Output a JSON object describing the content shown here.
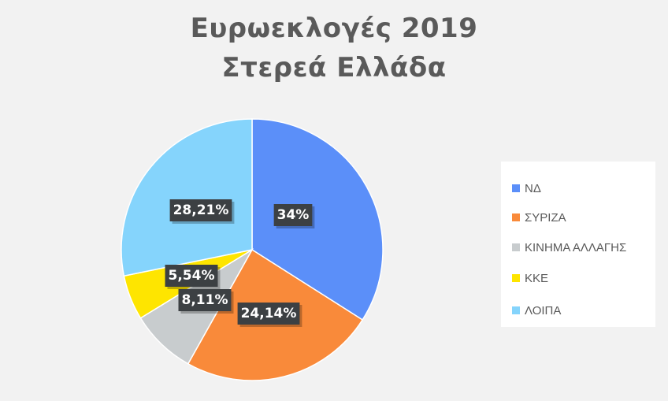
{
  "chart_data": {
    "type": "pie",
    "title": [
      "Ευρωεκλογές 2019",
      "Στερεά Ελλάδα"
    ],
    "categories": [
      "ΝΔ",
      "ΣΥΡΙΖΑ",
      "ΚΙΝΗΜΑ ΑΛΛΑΓΗΣ",
      "ΚΚΕ",
      "ΛΟΙΠΑ"
    ],
    "values": [
      34,
      24.14,
      8.11,
      5.54,
      28.21
    ],
    "data_labels": [
      "34%",
      "24,14%",
      "8,11%",
      "5,54%",
      "28,21%"
    ],
    "colors": [
      "#5b8ff9",
      "#f98a3a",
      "#c8ccce",
      "#fee500",
      "#85d4fc"
    ],
    "legend_position": "right"
  }
}
